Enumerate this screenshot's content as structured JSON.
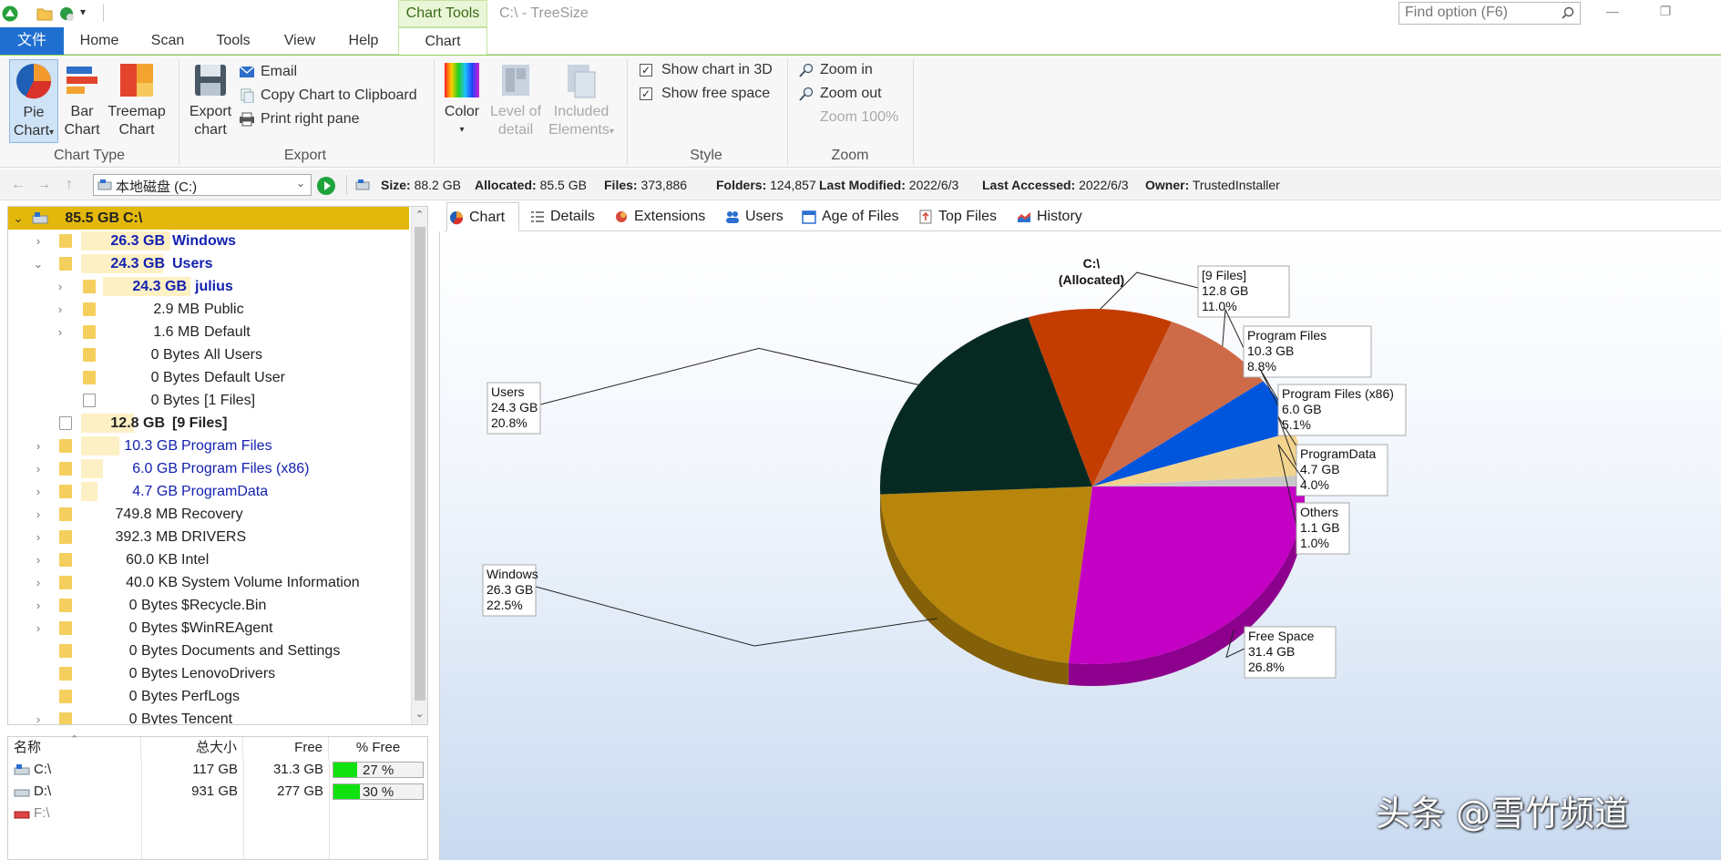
{
  "titlebar": {
    "context_tab": "Chart Tools",
    "doc_title": "C:\\ - TreeSize",
    "find_placeholder": "Find option (F6)"
  },
  "menu_tabs": [
    "文件",
    "Home",
    "Scan",
    "Tools",
    "View",
    "Help",
    "Chart"
  ],
  "ribbon": {
    "chart_type": {
      "label": "Chart Type",
      "pie": [
        "Pie",
        "Chart"
      ],
      "bar": [
        "Bar",
        "Chart"
      ],
      "treemap": [
        "Treemap",
        "Chart"
      ]
    },
    "export": {
      "label": "Export",
      "export_chart": [
        "Export",
        "chart"
      ],
      "email": "Email",
      "copy": "Copy Chart to Clipboard",
      "print": "Print right pane"
    },
    "color": {
      "color": "Color",
      "level": [
        "Level of",
        "detail"
      ],
      "included": [
        "Included",
        "Elements"
      ]
    },
    "style": {
      "label": "Style",
      "show3d": "Show chart in 3D",
      "free_space": "Show free space"
    },
    "zoom": {
      "label": "Zoom",
      "zoom_in": "Zoom in",
      "zoom_out": "Zoom out",
      "zoom_100": "Zoom 100%"
    }
  },
  "addressbar": {
    "drive": "本地磁盘 (C:)",
    "stats": [
      {
        "k": "Size:",
        "v": "88.2 GB"
      },
      {
        "k": "Allocated:",
        "v": "85.5 GB"
      },
      {
        "k": "Files:",
        "v": "373,886"
      },
      {
        "k": "Folders:",
        "v": "124,857"
      },
      {
        "k": "Last Modified:",
        "v": "2022/6/3"
      },
      {
        "k": "Last Accessed:",
        "v": "2022/6/3"
      },
      {
        "k": "Owner:",
        "v": "TrustedInstaller"
      }
    ]
  },
  "tree": [
    {
      "size": "85.5 GB",
      "name": "C:\\"
    },
    {
      "size": "26.3 GB",
      "name": "Windows"
    },
    {
      "size": "24.3 GB",
      "name": "Users"
    },
    {
      "size": "24.3 GB",
      "name": "julius"
    },
    {
      "size": "2.9 MB",
      "name": "Public"
    },
    {
      "size": "1.6 MB",
      "name": "Default"
    },
    {
      "size": "0 Bytes",
      "name": "All Users"
    },
    {
      "size": "0 Bytes",
      "name": "Default User"
    },
    {
      "size": "0 Bytes",
      "name": "[1 Files]"
    },
    {
      "size": "12.8 GB",
      "name": "[9 Files]"
    },
    {
      "size": "10.3 GB",
      "name": "Program Files"
    },
    {
      "size": "6.0 GB",
      "name": "Program Files (x86)"
    },
    {
      "size": "4.7 GB",
      "name": "ProgramData"
    },
    {
      "size": "749.8 MB",
      "name": "Recovery"
    },
    {
      "size": "392.3 MB",
      "name": "DRIVERS"
    },
    {
      "size": "60.0 KB",
      "name": "Intel"
    },
    {
      "size": "40.0 KB",
      "name": "System Volume Information"
    },
    {
      "size": "0 Bytes",
      "name": "$Recycle.Bin"
    },
    {
      "size": "0 Bytes",
      "name": "$WinREAgent"
    },
    {
      "size": "0 Bytes",
      "name": "Documents and Settings"
    },
    {
      "size": "0 Bytes",
      "name": "LenovoDrivers"
    },
    {
      "size": "0 Bytes",
      "name": "PerfLogs"
    },
    {
      "size": "0 Bytes",
      "name": "Tencent"
    }
  ],
  "drives": {
    "headers": [
      "名称",
      "总大小",
      "Free",
      "% Free"
    ],
    "rows": [
      {
        "name": "C:\\",
        "total": "117 GB",
        "free": "31.3 GB",
        "pct": "27 %",
        "pct_value": 27
      },
      {
        "name": "D:\\",
        "total": "931 GB",
        "free": "277 GB",
        "pct": "30 %",
        "pct_value": 30
      },
      {
        "name": "F:\\",
        "total": "",
        "free": "",
        "pct": "",
        "pct_value": 0
      }
    ]
  },
  "right_tabs": [
    "Chart",
    "Details",
    "Extensions",
    "Users",
    "Age of Files",
    "Top Files",
    "History"
  ],
  "chart_data": {
    "type": "pie",
    "title": "C:\\",
    "subtitle": "(Allocated)",
    "three_d": true,
    "slices": [
      {
        "label": "Free Space",
        "size": "31.4 GB",
        "pct": "26.8%",
        "value": 26.8,
        "color": "#c400c4"
      },
      {
        "label": "Windows",
        "size": "26.3 GB",
        "pct": "22.5%",
        "value": 22.5,
        "color": "#b8860b"
      },
      {
        "label": "Users",
        "size": "24.3 GB",
        "pct": "20.8%",
        "value": 20.8,
        "color": "#062a22"
      },
      {
        "label": "[9 Files]",
        "size": "12.8 GB",
        "pct": "11.0%",
        "value": 11.0,
        "color": "#c33c00"
      },
      {
        "label": "Program Files",
        "size": "10.3 GB",
        "pct": "8.8%",
        "value": 8.8,
        "color": "#cd6a48"
      },
      {
        "label": "Program Files (x86)",
        "size": "6.0 GB",
        "pct": "5.1%",
        "value": 5.1,
        "color": "#0055dd"
      },
      {
        "label": "ProgramData",
        "size": "4.7 GB",
        "pct": "4.0%",
        "value": 4.0,
        "color": "#f3d48e"
      },
      {
        "label": "Others",
        "size": "1.1 GB",
        "pct": "1.0%",
        "value": 1.0,
        "color": "#c8c8c8"
      }
    ]
  },
  "watermark": "头条 @雪竹频道"
}
